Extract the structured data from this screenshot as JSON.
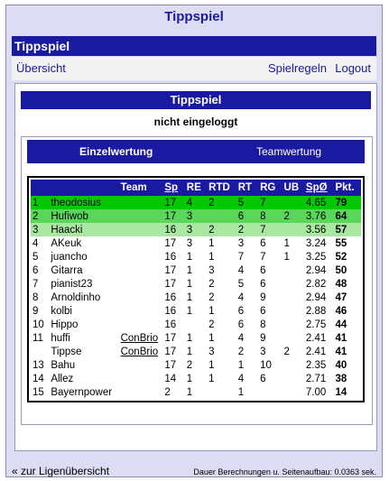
{
  "app_title": "Tippspiel",
  "topbar_title": "Tippspiel",
  "nav": {
    "overview": "Übersicht",
    "rules": "Spielregeln",
    "logout": "Logout"
  },
  "panel": {
    "title": "Tippspiel",
    "status": "nicht eingeloggt"
  },
  "tabs": {
    "single": "Einzelwertung",
    "team": "Teamwertung"
  },
  "table": {
    "columns": [
      "",
      "",
      "Team",
      "Sp",
      "RE",
      "RTD",
      "RT",
      "RG",
      "UB",
      "SpØ",
      "Pkt."
    ],
    "rows": [
      [
        "1",
        "theodosius",
        "",
        "17",
        "4",
        "2",
        "5",
        "7",
        "",
        "4.65",
        "79"
      ],
      [
        "2",
        "Hufiwob",
        "",
        "17",
        "3",
        "",
        "6",
        "8",
        "2",
        "3.76",
        "64"
      ],
      [
        "3",
        "Haacki",
        "",
        "16",
        "3",
        "2",
        "2",
        "7",
        "",
        "3.56",
        "57"
      ],
      [
        "4",
        "AKeuk",
        "",
        "17",
        "3",
        "1",
        "3",
        "6",
        "1",
        "3.24",
        "55"
      ],
      [
        "5",
        "juancho",
        "",
        "16",
        "1",
        "1",
        "7",
        "7",
        "1",
        "3.25",
        "52"
      ],
      [
        "6",
        "Gitarra",
        "",
        "17",
        "1",
        "3",
        "4",
        "6",
        "",
        "2.94",
        "50"
      ],
      [
        "7",
        "pianist23",
        "",
        "17",
        "1",
        "2",
        "5",
        "6",
        "",
        "2.82",
        "48"
      ],
      [
        "8",
        "Arnoldinho",
        "",
        "16",
        "1",
        "2",
        "4",
        "9",
        "",
        "2.94",
        "47"
      ],
      [
        "9",
        "kolbi",
        "",
        "16",
        "1",
        "1",
        "6",
        "6",
        "",
        "2.88",
        "46"
      ],
      [
        "10",
        "Hippo",
        "",
        "16",
        "",
        "2",
        "6",
        "8",
        "",
        "2.75",
        "44"
      ],
      [
        "11",
        "huffi",
        "ConBrio",
        "17",
        "1",
        "1",
        "4",
        "9",
        "",
        "2.41",
        "41"
      ],
      [
        "",
        "Tippse",
        "ConBrio",
        "17",
        "1",
        "3",
        "2",
        "3",
        "2",
        "2.41",
        "41"
      ],
      [
        "13",
        "Bahu",
        "",
        "17",
        "2",
        "1",
        "1",
        "10",
        "",
        "2.35",
        "40"
      ],
      [
        "14",
        "Allez",
        "",
        "14",
        "1",
        "1",
        "4",
        "6",
        "",
        "2.71",
        "38"
      ],
      [
        "15",
        "Bayernpower",
        "",
        "2",
        "1",
        "",
        "1",
        "",
        "",
        "7.00",
        "14"
      ]
    ]
  },
  "footer": {
    "back_link": "« zur Ligenübersicht",
    "timing": "Dauer Berechnungen u. Seitenaufbau: 0.0363 sek."
  }
}
